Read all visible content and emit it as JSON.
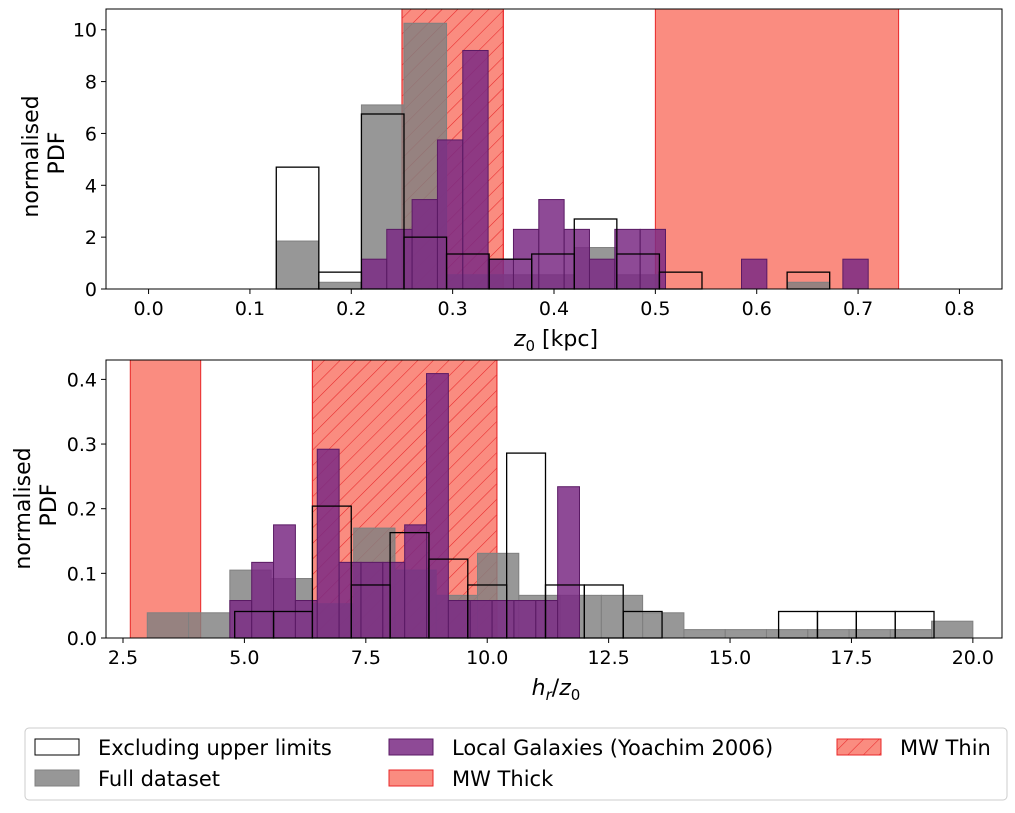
{
  "colors": {
    "full": "#808080",
    "local": "#7a2a84",
    "local_edge": "#5a1a64",
    "thick": "#fa8072",
    "thin": "#fa8072",
    "thin_edge": "#e8282a"
  },
  "legend": {
    "items": [
      {
        "key": "excl",
        "label": "Excluding upper limits"
      },
      {
        "key": "full",
        "label": "Full dataset"
      },
      {
        "key": "local",
        "label": "Local Galaxies (Yoachim 2006)"
      },
      {
        "key": "thick",
        "label": "MW Thick"
      },
      {
        "key": "thin",
        "label": "MW Thin"
      }
    ]
  },
  "chart_data": [
    {
      "type": "histogram",
      "id": "top",
      "xlabel": "z0 [kpc]",
      "ylabel": [
        "normalised",
        "PDF"
      ],
      "xlim": [
        -0.042,
        0.842
      ],
      "ylim": [
        0,
        10.8
      ],
      "xticks": [
        0.0,
        0.1,
        0.2,
        0.3,
        0.4,
        0.5,
        0.6,
        0.7,
        0.8
      ],
      "xtick_labels": [
        "0.0",
        "0.1",
        "0.2",
        "0.3",
        "0.4",
        "0.5",
        "0.6",
        "0.7",
        "0.8"
      ],
      "yticks": [
        0,
        2,
        4,
        6,
        8,
        10
      ],
      "ytick_labels": [
        "0",
        "2",
        "4",
        "6",
        "8",
        "10"
      ],
      "spans": [
        {
          "key": "thin",
          "x0": 0.25,
          "x1": 0.35,
          "hatch": true
        },
        {
          "key": "thick",
          "x0": 0.5,
          "x1": 0.74,
          "hatch": false
        }
      ],
      "series": [
        {
          "key": "full",
          "name": "Full dataset",
          "edges": [
            0.126,
            0.168,
            0.21,
            0.252,
            0.294,
            0.336,
            0.378,
            0.42,
            0.462,
            0.504,
            0.546,
            0.588,
            0.63,
            0.672
          ],
          "values": [
            1.85,
            0.26,
            7.1,
            10.25,
            0.55,
            0.55,
            0.55,
            1.6,
            0.55,
            0,
            0,
            0,
            0.26
          ]
        },
        {
          "key": "local",
          "name": "Local Galaxies (Yoachim 2006)",
          "edges": [
            0.21,
            0.235,
            0.26,
            0.285,
            0.31,
            0.335,
            0.36,
            0.385,
            0.41,
            0.435,
            0.46,
            0.485,
            0.51,
            0.535,
            0.56,
            0.585,
            0.61,
            0.635,
            0.66,
            0.685,
            0.71
          ],
          "values": [
            1.15,
            2.3,
            3.45,
            5.75,
            9.2,
            1.15,
            2.3,
            3.45,
            2.3,
            1.15,
            2.3,
            2.3,
            0,
            0,
            0,
            1.15,
            0,
            0,
            0,
            1.15
          ]
        },
        {
          "key": "excl",
          "name": "Excluding upper limits",
          "edges": [
            0.126,
            0.168,
            0.21,
            0.252,
            0.294,
            0.336,
            0.378,
            0.42,
            0.462,
            0.504,
            0.546,
            0.588,
            0.63,
            0.672
          ],
          "values": [
            4.7,
            0.65,
            6.75,
            2.0,
            1.35,
            1.15,
            1.35,
            2.7,
            1.35,
            0.65,
            0,
            0,
            0.65
          ]
        }
      ]
    },
    {
      "type": "histogram",
      "id": "bottom",
      "xlabel": "hr/z0",
      "ylabel": [
        "normalised",
        "PDF"
      ],
      "xlim": [
        2.15,
        20.6
      ],
      "ylim": [
        0,
        0.43
      ],
      "xticks": [
        2.5,
        5.0,
        7.5,
        10.0,
        12.5,
        15.0,
        17.5,
        20.0
      ],
      "xtick_labels": [
        "2.5",
        "5.0",
        "7.5",
        "10.0",
        "12.5",
        "15.0",
        "17.5",
        "20.0"
      ],
      "yticks": [
        0.0,
        0.1,
        0.2,
        0.3,
        0.4
      ],
      "ytick_labels": [
        "0.0",
        "0.1",
        "0.2",
        "0.3",
        "0.4"
      ],
      "spans": [
        {
          "key": "thick",
          "x0": 2.65,
          "x1": 4.1,
          "hatch": false
        },
        {
          "key": "thin",
          "x0": 6.4,
          "x1": 10.2,
          "hatch": true
        }
      ],
      "series": [
        {
          "key": "full",
          "name": "Full dataset",
          "edges": [
            3.0,
            3.85,
            4.7,
            5.55,
            6.4,
            7.25,
            8.1,
            8.95,
            9.8,
            10.65,
            11.5,
            12.35,
            13.2,
            14.05,
            14.9,
            15.75,
            16.6,
            17.45,
            18.3,
            19.15,
            20.0
          ],
          "values": [
            0.039,
            0.039,
            0.105,
            0.092,
            0.053,
            0.17,
            0.105,
            0.066,
            0.131,
            0.066,
            0.066,
            0.066,
            0.039,
            0.013,
            0.013,
            0.013,
            0.013,
            0.013,
            0.013,
            0.026
          ]
        },
        {
          "key": "local",
          "name": "Local Galaxies (Yoachim 2006)",
          "edges": [
            4.7,
            5.15,
            5.6,
            6.05,
            6.5,
            6.95,
            7.4,
            7.85,
            8.3,
            8.75,
            9.2,
            9.65,
            10.1,
            10.55,
            11.0,
            11.45,
            11.9
          ],
          "values": [
            0.058,
            0.117,
            0.175,
            0.058,
            0.292,
            0.117,
            0.117,
            0.117,
            0.175,
            0.409,
            0.058,
            0.058,
            0.058,
            0.058,
            0.058,
            0.234
          ]
        },
        {
          "key": "excl",
          "name": "Excluding upper limits",
          "edges": [
            4.8,
            5.6,
            6.4,
            7.2,
            8.0,
            8.8,
            9.6,
            10.4,
            11.2,
            12.0,
            12.8,
            13.6,
            14.4,
            15.2,
            16.0,
            16.8,
            17.6,
            18.4,
            19.2
          ],
          "values": [
            0.041,
            0.041,
            0.204,
            0.082,
            0.163,
            0.122,
            0.082,
            0.286,
            0.082,
            0.082,
            0.041,
            0,
            0,
            0,
            0.041,
            0.041,
            0.041,
            0.041
          ]
        }
      ]
    }
  ]
}
